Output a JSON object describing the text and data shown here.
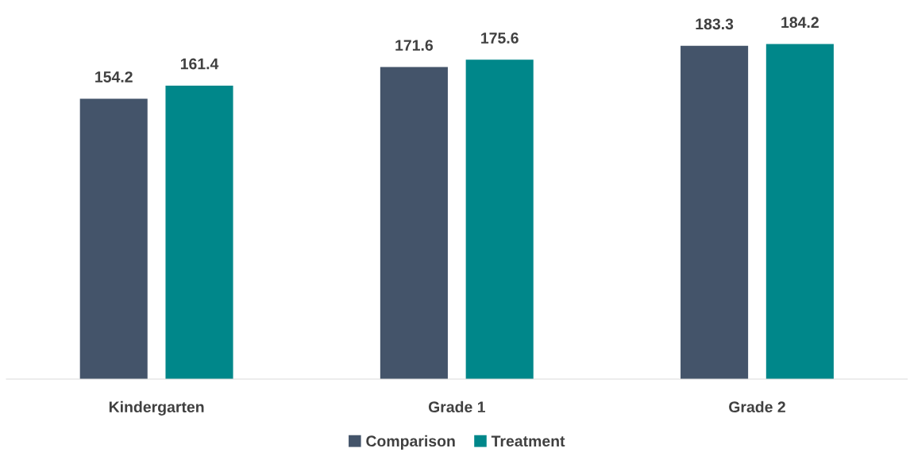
{
  "chart_data": {
    "type": "bar",
    "categories": [
      "Kindergarten",
      "Grade 1",
      "Grade 2"
    ],
    "series": [
      {
        "name": "Comparison",
        "color": "#44546a",
        "values": [
          154.2,
          171.6,
          183.3
        ]
      },
      {
        "name": "Treatment",
        "color": "#00878a",
        "values": [
          161.4,
          175.6,
          184.2
        ]
      }
    ],
    "tick_labels": "x",
    "data_labels": true,
    "grid": false,
    "legend": "bottom"
  }
}
